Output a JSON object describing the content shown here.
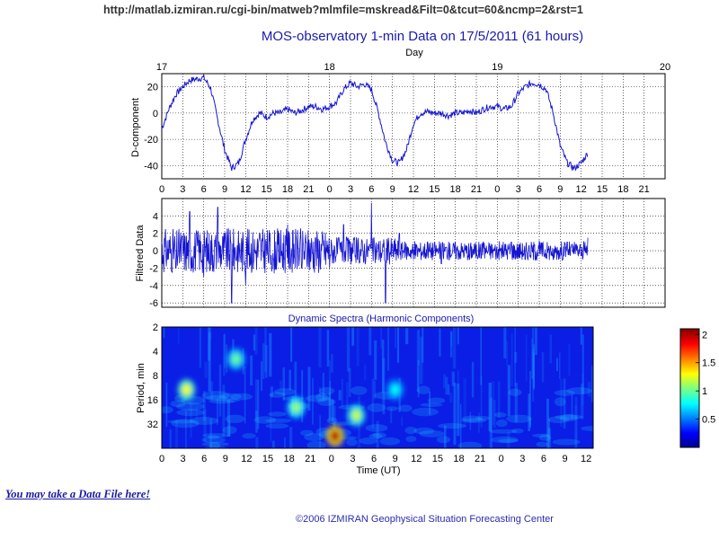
{
  "page": {
    "url": "http://matlab.izmiran.ru/cgi-bin/matweb?mlmfile=mskread&Filt=0&tcut=60&ncmp=2&rst=1",
    "data_link": "You may take a Data File here!",
    "footer": "©2006 IZMIRAN Geophysical Situation Forecasting Center"
  },
  "chart_data": [
    {
      "type": "line",
      "title": "MOS-observatory 1-min Data on 17/5/2011 (61 hours)",
      "top_axis_label": "Day",
      "day_ticks": [
        "17",
        "18",
        "19",
        "20"
      ],
      "ylabel": "D-component",
      "ylim": [
        -50,
        30
      ],
      "yticks": [
        20,
        0,
        -20,
        -40
      ],
      "xlim_hours": [
        0,
        72
      ],
      "x_tick_labels": [
        "0",
        "3",
        "6",
        "9",
        "12",
        "15",
        "18",
        "21",
        "0",
        "3",
        "6",
        "9",
        "12",
        "15",
        "18",
        "21",
        "0",
        "3",
        "6",
        "9",
        "12",
        "15",
        "18",
        "21"
      ],
      "grid": true,
      "color": "#1414d2",
      "series": [
        {
          "x": [
            0,
            1,
            2,
            3,
            4,
            5,
            6,
            7,
            8,
            9,
            10,
            11,
            12,
            13,
            14,
            15,
            16,
            17,
            18,
            19,
            20,
            21,
            22,
            23,
            24,
            25,
            26,
            27,
            28,
            29,
            30,
            31,
            32,
            33,
            34,
            35,
            36,
            37,
            38,
            39,
            40,
            41,
            42,
            43,
            44,
            45,
            46,
            47,
            48,
            49,
            50,
            51,
            52,
            53,
            54,
            55,
            56,
            57,
            58,
            59,
            60,
            61,
            62,
            63,
            64,
            65,
            66,
            67,
            68,
            69,
            70,
            71,
            72
          ],
          "y": [
            -12,
            3,
            14,
            20,
            25,
            26,
            27,
            19,
            -5,
            -28,
            -42,
            -38,
            -20,
            -5,
            0,
            -3,
            0,
            0,
            3,
            0,
            2,
            5,
            5,
            3,
            5,
            8,
            18,
            23,
            20,
            22,
            18,
            0,
            -22,
            -36,
            -38,
            -28,
            -8,
            0,
            1,
            0,
            0,
            -2,
            0,
            0,
            2,
            0,
            3,
            5,
            5,
            3,
            5,
            15,
            20,
            23,
            22,
            18,
            0,
            -25,
            -38,
            -42,
            -38,
            -30,
            null,
            null,
            null,
            null,
            null,
            null,
            null,
            null,
            null,
            null,
            null
          ]
        }
      ]
    },
    {
      "type": "line",
      "ylabel": "Filtered Data",
      "ylim": [
        -6.5,
        6
      ],
      "yticks": [
        4,
        2,
        0,
        -2,
        -4,
        -6
      ],
      "xlim_hours": [
        0,
        72
      ],
      "x_tick_labels": [
        "0",
        "3",
        "6",
        "9",
        "12",
        "15",
        "18",
        "21",
        "0",
        "3",
        "6",
        "9",
        "12",
        "15",
        "18",
        "21",
        "0",
        "3",
        "6",
        "9",
        "12",
        "15",
        "18",
        "21"
      ],
      "grid": true,
      "color": "#1414d2",
      "series": [
        {
          "x": [
            0,
            2,
            4,
            6,
            8,
            10,
            12,
            14,
            16,
            18,
            20,
            22,
            24,
            26,
            28,
            30,
            32,
            34,
            36,
            38,
            40,
            42,
            44,
            46,
            48,
            50,
            52,
            54,
            56,
            58,
            60,
            61,
            62
          ],
          "y": [
            1,
            -2,
            4.5,
            -3,
            5,
            -6,
            -4,
            2,
            -1,
            3,
            -2,
            1.5,
            -2,
            3,
            -1,
            5.5,
            -6,
            2,
            -1,
            1,
            -1.5,
            1,
            -1,
            1,
            -0.8,
            1,
            -1,
            1.2,
            -1,
            1,
            -0.5,
            1.5,
            2
          ]
        }
      ]
    },
    {
      "type": "heatmap",
      "title": "Dynamic Spectra (Harmonic Components)",
      "xlabel": "Time (UT)",
      "ylabel": "Period, min",
      "yticks": [
        "2",
        "4",
        "8",
        "16",
        "32"
      ],
      "x_tick_labels": [
        "0",
        "3",
        "6",
        "9",
        "12",
        "15",
        "18",
        "21",
        "0",
        "3",
        "6",
        "9",
        "12",
        "15",
        "18",
        "21",
        "0",
        "3",
        "6",
        "9",
        "12"
      ],
      "colorbar": {
        "ticks": [
          "2",
          "1.5",
          "1",
          "0.5"
        ],
        "range": [
          0,
          2.1
        ],
        "colormap": "jet"
      },
      "hotspots": [
        {
          "time_h": 3.5,
          "period_min": 12,
          "value": 1.3
        },
        {
          "time_h": 10.5,
          "period_min": 5,
          "value": 1.0
        },
        {
          "time_h": 19,
          "period_min": 20,
          "value": 1.1
        },
        {
          "time_h": 24.5,
          "period_min": 45,
          "value": 2.0
        },
        {
          "time_h": 27.5,
          "period_min": 25,
          "value": 1.2
        },
        {
          "time_h": 33,
          "period_min": 12,
          "value": 0.8
        }
      ]
    }
  ]
}
